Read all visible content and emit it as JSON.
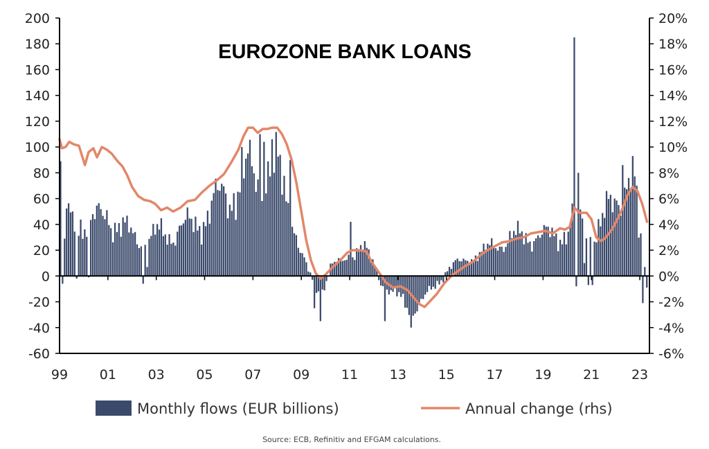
{
  "chart_data": {
    "type": "bar+line",
    "title": "EUROZONE  BANK LOANS",
    "source": "Source: ECB, Refinitiv and EFGAM calculations.",
    "x_tick_labels": [
      "99",
      "01",
      "03",
      "05",
      "07",
      "09",
      "11",
      "13",
      "15",
      "17",
      "19",
      "21",
      "23"
    ],
    "x_range": [
      1999.0,
      2023.4
    ],
    "y_left": {
      "range": [
        -60,
        200
      ],
      "ticks": [
        "200",
        "180",
        "160",
        "140",
        "120",
        "100",
        "80",
        "60",
        "40",
        "20",
        "0",
        "-20",
        "-40",
        "-60"
      ]
    },
    "y_right": {
      "range": [
        -6,
        20
      ],
      "ticks": [
        "20%",
        "18%",
        "16%",
        "14%",
        "12%",
        "10%",
        "8%",
        "6%",
        "4%",
        "2%",
        "0%",
        "-2%",
        "-4%",
        "-6%"
      ]
    },
    "colors": {
      "bars": "#3b4a6b",
      "line": "#e2876a",
      "axis": "#000000"
    },
    "legend": {
      "bars_label": "Monthly flows (EUR billions)",
      "line_label": "Annual change (rhs)"
    },
    "series_bars": {
      "name": "Monthly flows (EUR billions)",
      "anchors": [
        [
          1999.0,
          60
        ],
        [
          1999.5,
          38
        ],
        [
          2000.0,
          45
        ],
        [
          2000.5,
          42
        ],
        [
          2001.0,
          48
        ],
        [
          2001.5,
          38
        ],
        [
          2002.0,
          30
        ],
        [
          2002.5,
          28
        ],
        [
          2003.0,
          32
        ],
        [
          2003.5,
          32
        ],
        [
          2004.0,
          38
        ],
        [
          2004.5,
          38
        ],
        [
          2005.0,
          48
        ],
        [
          2005.5,
          58
        ],
        [
          2006.0,
          65
        ],
        [
          2006.5,
          72
        ],
        [
          2007.0,
          78
        ],
        [
          2007.5,
          82
        ],
        [
          2008.0,
          78
        ],
        [
          2008.5,
          55
        ],
        [
          2008.9,
          20
        ],
        [
          2009.2,
          5
        ],
        [
          2009.5,
          -8
        ],
        [
          2009.8,
          -12
        ],
        [
          2010.2,
          8
        ],
        [
          2010.6,
          10
        ],
        [
          2011.0,
          18
        ],
        [
          2011.5,
          22
        ],
        [
          2011.9,
          12
        ],
        [
          2012.3,
          -5
        ],
        [
          2012.7,
          -14
        ],
        [
          2013.1,
          -18
        ],
        [
          2013.5,
          -25
        ],
        [
          2013.9,
          -22
        ],
        [
          2014.3,
          -12
        ],
        [
          2014.7,
          -2
        ],
        [
          2015.0,
          5
        ],
        [
          2015.5,
          10
        ],
        [
          2016.0,
          15
        ],
        [
          2016.5,
          18
        ],
        [
          2017.0,
          25
        ],
        [
          2017.5,
          28
        ],
        [
          2018.0,
          30
        ],
        [
          2018.5,
          32
        ],
        [
          2019.0,
          30
        ],
        [
          2019.5,
          32
        ],
        [
          2020.0,
          35
        ],
        [
          2020.3,
          48
        ],
        [
          2020.7,
          35
        ],
        [
          2021.0,
          30
        ],
        [
          2021.4,
          40
        ],
        [
          2021.8,
          55
        ],
        [
          2022.2,
          70
        ],
        [
          2022.6,
          75
        ],
        [
          2022.8,
          60
        ],
        [
          2023.0,
          10
        ],
        [
          2023.3,
          -5
        ]
      ],
      "overrides": {
        "1999.0": 89,
        "1999.08": -6,
        "1999.17": 29,
        "1999.67": -2,
        "2000.17": -1,
        "2002.42": -6,
        "2002.58": 7,
        "2006.5": 100,
        "2006.75": 95,
        "2007.25": 110,
        "2007.42": 104,
        "2007.75": 106,
        "2008.5": 90,
        "2009.5": -25,
        "2009.75": -35,
        "2011.0": 42,
        "2012.42": -35,
        "2013.5": -40,
        "2020.25": 185,
        "2020.33": -8,
        "2020.42": 80,
        "2020.67": 10,
        "2020.83": -7,
        "2021.0": -7,
        "2022.25": 86,
        "2022.67": 93,
        "2023.0": 33,
        "2023.08": -21,
        "2023.17": 7,
        "2023.25": -9
      }
    },
    "series_line": {
      "name": "Annual change (rhs)",
      "points": [
        [
          1999.0,
          10.6
        ],
        [
          1999.1,
          9.9
        ],
        [
          1999.25,
          10.0
        ],
        [
          1999.4,
          10.4
        ],
        [
          1999.6,
          10.2
        ],
        [
          1999.8,
          10.1
        ],
        [
          1999.95,
          9.2
        ],
        [
          2000.05,
          8.6
        ],
        [
          2000.2,
          9.6
        ],
        [
          2000.4,
          9.9
        ],
        [
          2000.55,
          9.2
        ],
        [
          2000.75,
          10.0
        ],
        [
          2000.95,
          9.8
        ],
        [
          2001.15,
          9.5
        ],
        [
          2001.4,
          8.9
        ],
        [
          2001.6,
          8.5
        ],
        [
          2001.8,
          7.8
        ],
        [
          2002.0,
          6.9
        ],
        [
          2002.25,
          6.2
        ],
        [
          2002.5,
          5.9
        ],
        [
          2002.75,
          5.8
        ],
        [
          2002.95,
          5.6
        ],
        [
          2003.2,
          5.1
        ],
        [
          2003.45,
          5.3
        ],
        [
          2003.7,
          5.0
        ],
        [
          2004.0,
          5.3
        ],
        [
          2004.3,
          5.8
        ],
        [
          2004.6,
          5.9
        ],
        [
          2004.9,
          6.5
        ],
        [
          2005.2,
          7.0
        ],
        [
          2005.5,
          7.4
        ],
        [
          2005.8,
          7.9
        ],
        [
          2006.1,
          8.8
        ],
        [
          2006.4,
          9.8
        ],
        [
          2006.6,
          10.8
        ],
        [
          2006.8,
          11.5
        ],
        [
          2007.0,
          11.5
        ],
        [
          2007.2,
          11.1
        ],
        [
          2007.4,
          11.4
        ],
        [
          2007.6,
          11.4
        ],
        [
          2007.8,
          11.5
        ],
        [
          2008.0,
          11.5
        ],
        [
          2008.2,
          11.0
        ],
        [
          2008.4,
          10.2
        ],
        [
          2008.6,
          9.0
        ],
        [
          2008.8,
          7.2
        ],
        [
          2009.0,
          5.0
        ],
        [
          2009.2,
          2.8
        ],
        [
          2009.4,
          1.2
        ],
        [
          2009.6,
          0.2
        ],
        [
          2009.8,
          -0.2
        ],
        [
          2010.0,
          0.1
        ],
        [
          2010.3,
          0.7
        ],
        [
          2010.6,
          1.2
        ],
        [
          2010.9,
          1.8
        ],
        [
          2011.1,
          2.0
        ],
        [
          2011.4,
          2.0
        ],
        [
          2011.7,
          1.9
        ],
        [
          2011.9,
          1.1
        ],
        [
          2012.2,
          0.3
        ],
        [
          2012.5,
          -0.5
        ],
        [
          2012.8,
          -0.9
        ],
        [
          2013.1,
          -0.8
        ],
        [
          2013.4,
          -1.1
        ],
        [
          2013.7,
          -1.8
        ],
        [
          2013.9,
          -2.2
        ],
        [
          2014.1,
          -2.4
        ],
        [
          2014.3,
          -2.0
        ],
        [
          2014.6,
          -1.4
        ],
        [
          2014.9,
          -0.6
        ],
        [
          2015.2,
          0.0
        ],
        [
          2015.5,
          0.4
        ],
        [
          2015.8,
          0.8
        ],
        [
          2016.1,
          1.1
        ],
        [
          2016.4,
          1.6
        ],
        [
          2016.7,
          2.0
        ],
        [
          2017.0,
          2.3
        ],
        [
          2017.3,
          2.6
        ],
        [
          2017.6,
          2.7
        ],
        [
          2017.9,
          2.9
        ],
        [
          2018.2,
          3.0
        ],
        [
          2018.5,
          3.3
        ],
        [
          2018.8,
          3.4
        ],
        [
          2019.1,
          3.5
        ],
        [
          2019.4,
          3.3
        ],
        [
          2019.7,
          3.7
        ],
        [
          2019.9,
          3.6
        ],
        [
          2020.1,
          3.8
        ],
        [
          2020.3,
          5.3
        ],
        [
          2020.5,
          4.9
        ],
        [
          2020.8,
          4.9
        ],
        [
          2021.0,
          4.4
        ],
        [
          2021.2,
          3.0
        ],
        [
          2021.4,
          2.7
        ],
        [
          2021.6,
          3.0
        ],
        [
          2021.85,
          3.6
        ],
        [
          2022.1,
          4.5
        ],
        [
          2022.3,
          5.3
        ],
        [
          2022.5,
          6.3
        ],
        [
          2022.7,
          6.9
        ],
        [
          2022.9,
          6.6
        ],
        [
          2023.1,
          5.6
        ],
        [
          2023.3,
          4.2
        ]
      ]
    }
  }
}
